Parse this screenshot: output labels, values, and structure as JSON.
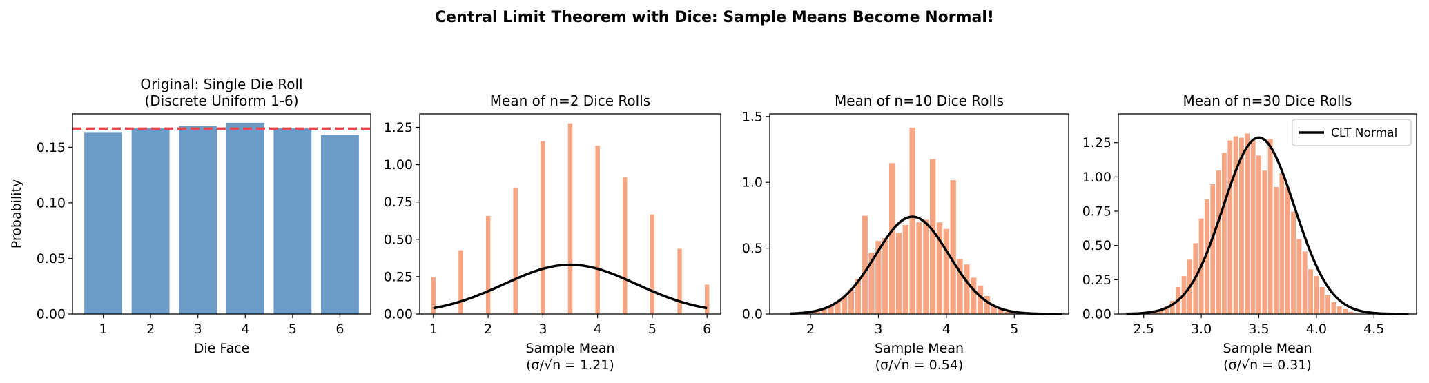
{
  "figure": {
    "suptitle": "Central Limit Theorem with Dice: Sample Means Become Normal!"
  },
  "chart_data": [
    {
      "type": "bar",
      "title_lines": [
        "Original: Single Die Roll",
        "(Discrete Uniform 1-6)"
      ],
      "xlabel": "Die Face",
      "ylabel": "Probability",
      "categories": [
        "1",
        "2",
        "3",
        "4",
        "5",
        "6"
      ],
      "values": [
        0.163,
        0.167,
        0.169,
        0.172,
        0.167,
        0.161
      ],
      "xlim": [
        0.35,
        6.65
      ],
      "ylim": [
        0,
        0.18
      ],
      "yticks": [
        0,
        0.05,
        0.1,
        0.15
      ],
      "ytick_labels": [
        "0.00",
        "0.05",
        "0.10",
        "0.15"
      ],
      "reference_line": {
        "y": 0.1667,
        "style": "dashed"
      },
      "colors": {
        "bar": "#6b9bc6",
        "reference": "#e8474d"
      }
    },
    {
      "type": "histogram",
      "title": "Mean of n=2 Dice Rolls",
      "xlabel_lines": [
        "Sample Mean",
        "(σ/√n = 1.21)"
      ],
      "bin_width": 0.1,
      "bins": [
        [
          1.0,
          0.25
        ],
        [
          1.5,
          0.43
        ],
        [
          2.0,
          0.66
        ],
        [
          2.5,
          0.85
        ],
        [
          3.0,
          1.16
        ],
        [
          3.5,
          1.28
        ],
        [
          4.0,
          1.13
        ],
        [
          4.5,
          0.92
        ],
        [
          5.0,
          0.67
        ],
        [
          5.5,
          0.44
        ],
        [
          6.0,
          0.2
        ]
      ],
      "normal_curve": {
        "mean": 3.5,
        "sd": 1.21,
        "x_range": [
          1.0,
          6.0
        ]
      },
      "xlim": [
        0.75,
        6.25
      ],
      "ylim": [
        0,
        1.34
      ],
      "xticks": [
        1,
        2,
        3,
        4,
        5,
        6
      ],
      "xtick_labels": [
        "1",
        "2",
        "3",
        "4",
        "5",
        "6"
      ],
      "yticks": [
        0,
        0.25,
        0.5,
        0.75,
        1.0,
        1.25
      ],
      "ytick_labels": [
        "0.00",
        "0.25",
        "0.50",
        "0.75",
        "1.00",
        "1.25"
      ],
      "colors": {
        "bar": "#f7a582",
        "curve": "#000000"
      }
    },
    {
      "type": "histogram",
      "title": "Mean of n=10 Dice Rolls",
      "xlabel_lines": [
        "Sample Mean",
        "(σ/√n = 0.54)"
      ],
      "bin_width": 0.1,
      "bins": [
        [
          1.9,
          0.01
        ],
        [
          2.0,
          0.02
        ],
        [
          2.1,
          0.03
        ],
        [
          2.2,
          0.05
        ],
        [
          2.3,
          0.07
        ],
        [
          2.4,
          0.1
        ],
        [
          2.5,
          0.14
        ],
        [
          2.6,
          0.19
        ],
        [
          2.7,
          0.27
        ],
        [
          2.8,
          0.75
        ],
        [
          2.9,
          0.47
        ],
        [
          3.0,
          0.56
        ],
        [
          3.1,
          0.58
        ],
        [
          3.2,
          1.15
        ],
        [
          3.3,
          0.62
        ],
        [
          3.4,
          0.68
        ],
        [
          3.5,
          1.42
        ],
        [
          3.6,
          0.7
        ],
        [
          3.7,
          0.72
        ],
        [
          3.8,
          1.18
        ],
        [
          3.9,
          0.7
        ],
        [
          4.0,
          0.65
        ],
        [
          4.1,
          1.02
        ],
        [
          4.2,
          0.42
        ],
        [
          4.3,
          0.38
        ],
        [
          4.4,
          0.28
        ],
        [
          4.5,
          0.22
        ],
        [
          4.6,
          0.14
        ],
        [
          4.7,
          0.07
        ],
        [
          4.8,
          0.04
        ],
        [
          4.9,
          0.02
        ],
        [
          5.0,
          0.01
        ]
      ],
      "normal_curve": {
        "mean": 3.5,
        "sd": 0.54,
        "x_range": [
          1.7,
          5.7
        ]
      },
      "xlim": [
        1.4,
        5.8
      ],
      "ylim": [
        0,
        1.52
      ],
      "xticks": [
        2,
        3,
        4,
        5
      ],
      "xtick_labels": [
        "2",
        "3",
        "4",
        "5"
      ],
      "yticks": [
        0,
        0.5,
        1.0,
        1.5
      ],
      "ytick_labels": [
        "0.0",
        "0.5",
        "1.0",
        "1.5"
      ],
      "colors": {
        "bar": "#f7a582",
        "curve": "#000000"
      }
    },
    {
      "type": "histogram",
      "title": "Mean of n=30 Dice Rolls",
      "xlabel_lines": [
        "Sample Mean",
        "(σ/√n = 0.31)"
      ],
      "legend": {
        "position": "top-right",
        "entries": [
          "CLT Normal"
        ]
      },
      "bin_width": 0.05,
      "bins": [
        [
          2.55,
          0.01
        ],
        [
          2.6,
          0.02
        ],
        [
          2.65,
          0.03
        ],
        [
          2.7,
          0.06
        ],
        [
          2.75,
          0.1
        ],
        [
          2.8,
          0.2
        ],
        [
          2.85,
          0.28
        ],
        [
          2.9,
          0.4
        ],
        [
          2.95,
          0.52
        ],
        [
          3.0,
          0.7
        ],
        [
          3.05,
          0.84
        ],
        [
          3.1,
          0.95
        ],
        [
          3.15,
          1.05
        ],
        [
          3.2,
          1.18
        ],
        [
          3.25,
          1.27
        ],
        [
          3.3,
          1.3
        ],
        [
          3.35,
          1.29
        ],
        [
          3.4,
          1.32
        ],
        [
          3.45,
          1.27
        ],
        [
          3.5,
          1.16
        ],
        [
          3.55,
          1.05
        ],
        [
          3.6,
          1.28
        ],
        [
          3.65,
          0.93
        ],
        [
          3.7,
          1.03
        ],
        [
          3.75,
          0.93
        ],
        [
          3.8,
          0.75
        ],
        [
          3.85,
          0.55
        ],
        [
          3.9,
          0.46
        ],
        [
          3.95,
          0.33
        ],
        [
          4.0,
          0.28
        ],
        [
          4.05,
          0.2
        ],
        [
          4.1,
          0.14
        ],
        [
          4.15,
          0.09
        ],
        [
          4.2,
          0.06
        ],
        [
          4.25,
          0.04
        ],
        [
          4.3,
          0.02
        ],
        [
          4.35,
          0.01
        ]
      ],
      "normal_curve": {
        "mean": 3.5,
        "sd": 0.31,
        "x_range": [
          2.35,
          4.8
        ]
      },
      "xlim": [
        2.28,
        4.87
      ],
      "ylim": [
        0,
        1.46
      ],
      "xticks": [
        2.5,
        3.0,
        3.5,
        4.0,
        4.5
      ],
      "xtick_labels": [
        "2.5",
        "3.0",
        "3.5",
        "4.0",
        "4.5"
      ],
      "yticks": [
        0,
        0.25,
        0.5,
        0.75,
        1.0,
        1.25
      ],
      "ytick_labels": [
        "0.00",
        "0.25",
        "0.50",
        "0.75",
        "1.00",
        "1.25"
      ],
      "colors": {
        "bar": "#f7a582",
        "curve": "#000000"
      }
    }
  ]
}
